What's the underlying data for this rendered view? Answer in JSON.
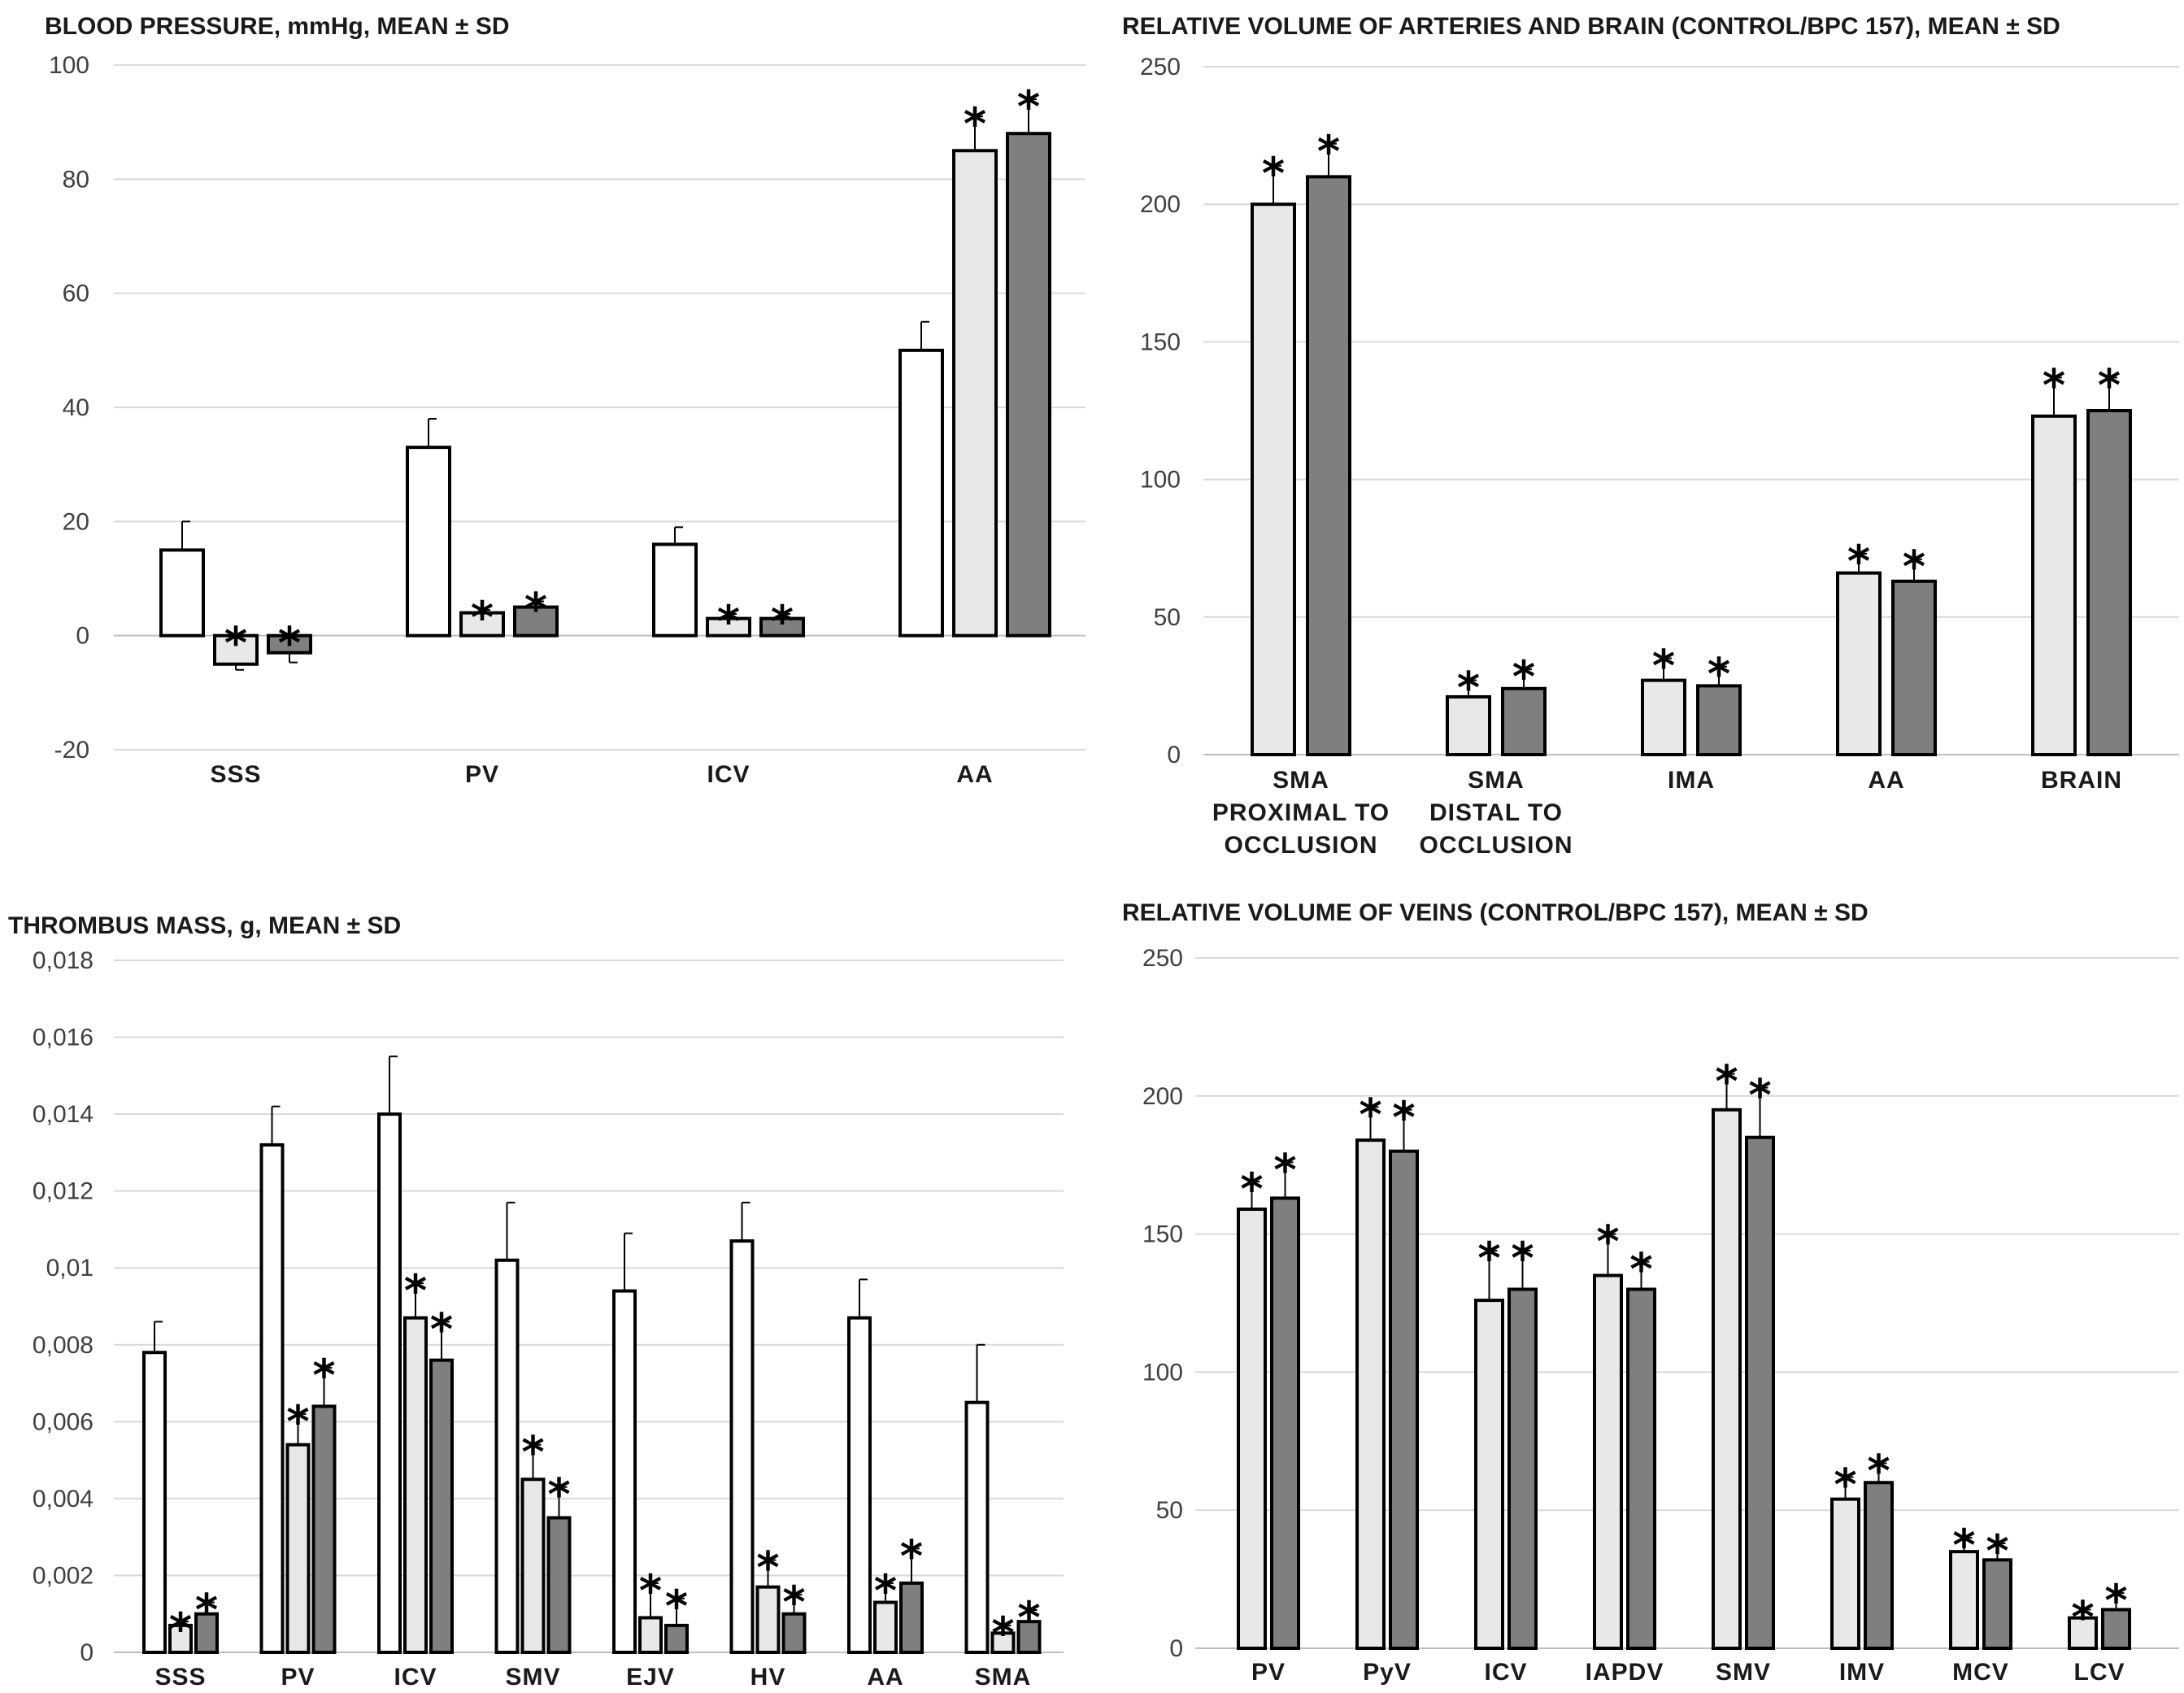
{
  "chart_data": [
    {
      "type": "bar",
      "title": "BLOOD PRESSURE, mmHg, MEAN ± SD",
      "categories": [
        "SSS",
        "PV",
        "ICV",
        "AA"
      ],
      "ylim": [
        -20,
        100
      ],
      "yticks": [
        -20,
        0,
        20,
        40,
        60,
        80,
        100
      ],
      "tick_labels": [
        "-20",
        "0",
        "20",
        "40",
        "60",
        "80",
        "100"
      ],
      "grid": true,
      "series": [
        {
          "name": "white",
          "color": "#ffffff",
          "values": [
            15,
            33,
            16,
            50
          ],
          "sd": [
            5,
            5,
            3,
            5
          ],
          "stars": [
            false,
            false,
            false,
            false
          ]
        },
        {
          "name": "light grey",
          "color": "#e8e8e8",
          "values": [
            -5,
            4,
            3,
            85
          ],
          "sd": [
            1,
            0.5,
            0.8,
            6
          ],
          "stars": [
            true,
            true,
            true,
            true
          ]
        },
        {
          "name": "dark grey",
          "color": "#7f7f7f",
          "values": [
            -3,
            5,
            3,
            88
          ],
          "sd": [
            1.7,
            1,
            0.8,
            6
          ],
          "stars": [
            true,
            true,
            true,
            true
          ]
        }
      ]
    },
    {
      "type": "bar",
      "title": "RELATIVE VOLUME OF ARTERIES AND BRAIN (CONTROL/BPC 157), MEAN ± SD",
      "categories": [
        "SMA\nPROXIMAL TO\nOCCLUSION",
        "SMA\nDISTAL TO\nOCCLUSION",
        "IMA",
        "AA",
        "BRAIN"
      ],
      "ylim": [
        0,
        250
      ],
      "yticks": [
        0,
        50,
        100,
        150,
        200,
        250
      ],
      "tick_labels": [
        "0",
        "50",
        "100",
        "150",
        "200",
        "250"
      ],
      "grid": true,
      "series": [
        {
          "name": "light grey",
          "color": "#e8e8e8",
          "values": [
            200,
            21,
            27,
            66,
            123
          ],
          "sd": [
            14,
            6,
            8,
            7,
            14
          ],
          "stars": [
            true,
            true,
            true,
            true,
            true
          ]
        },
        {
          "name": "dark grey",
          "color": "#7f7f7f",
          "values": [
            210,
            24,
            25,
            63,
            125
          ],
          "sd": [
            12,
            7,
            7,
            8,
            12
          ],
          "stars": [
            true,
            true,
            true,
            true,
            true
          ]
        }
      ]
    },
    {
      "type": "bar",
      "title": "THROMBUS MASS, g, MEAN ± SD",
      "categories": [
        "SSS",
        "PV",
        "ICV",
        "SMV",
        "EJV",
        "HV",
        "AA",
        "SMA"
      ],
      "ylim": [
        0,
        0.018
      ],
      "yticks": [
        0,
        0.002,
        0.004,
        0.006,
        0.008,
        0.01,
        0.012,
        0.014,
        0.016,
        0.018
      ],
      "tick_labels": [
        "0",
        "0,002",
        "0,004",
        "0,006",
        "0,008",
        "0,01",
        "0,012",
        "0,014",
        "0,016",
        "0,018"
      ],
      "grid": true,
      "series": [
        {
          "name": "white",
          "color": "#ffffff",
          "values": [
            0.0078,
            0.0132,
            0.014,
            0.0102,
            0.0094,
            0.0107,
            0.0087,
            0.0065
          ],
          "sd": [
            0.0008,
            0.001,
            0.0015,
            0.0015,
            0.0015,
            0.001,
            0.001,
            0.0015
          ],
          "stars": [
            false,
            false,
            false,
            false,
            false,
            false,
            false,
            false
          ]
        },
        {
          "name": "light grey",
          "color": "#e8e8e8",
          "values": [
            0.0007,
            0.0054,
            0.0087,
            0.0045,
            0.0009,
            0.0017,
            0.0013,
            0.0005
          ],
          "sd": [
            0.0001,
            0.0008,
            0.0009,
            0.0009,
            0.0009,
            0.0007,
            0.0005,
            0.0002
          ],
          "stars": [
            true,
            true,
            true,
            true,
            true,
            true,
            true,
            true
          ]
        },
        {
          "name": "dark grey",
          "color": "#7f7f7f",
          "values": [
            0.001,
            0.0064,
            0.0076,
            0.0035,
            0.0007,
            0.001,
            0.0018,
            0.0008
          ],
          "sd": [
            0.0003,
            0.001,
            0.001,
            0.0008,
            0.0007,
            0.0005,
            0.0009,
            0.0003
          ],
          "stars": [
            true,
            true,
            true,
            true,
            true,
            true,
            true,
            true
          ]
        }
      ]
    },
    {
      "type": "bar",
      "title": "RELATIVE VOLUME OF VEINS (CONTROL/BPC 157), MEAN ± SD",
      "categories": [
        "PV",
        "PyV",
        "ICV",
        "IAPDV",
        "SMV",
        "IMV",
        "MCV",
        "LCV"
      ],
      "ylim": [
        0,
        250
      ],
      "yticks": [
        0,
        50,
        100,
        150,
        200,
        250
      ],
      "tick_labels": [
        "0",
        "50",
        "100",
        "150",
        "200",
        "250"
      ],
      "grid": true,
      "series": [
        {
          "name": "light grey",
          "color": "#e8e8e8",
          "values": [
            159,
            184,
            126,
            135,
            195,
            54,
            35,
            11
          ],
          "sd": [
            10,
            12,
            18,
            15,
            13,
            8,
            5,
            3
          ],
          "stars": [
            true,
            true,
            true,
            true,
            true,
            true,
            true,
            true
          ]
        },
        {
          "name": "dark grey",
          "color": "#7f7f7f",
          "values": [
            163,
            180,
            130,
            130,
            185,
            60,
            32,
            14
          ],
          "sd": [
            13,
            15,
            14,
            10,
            18,
            7,
            6,
            6
          ],
          "stars": [
            true,
            true,
            true,
            true,
            true,
            true,
            true,
            true
          ]
        }
      ]
    }
  ],
  "significance_marker": "*"
}
